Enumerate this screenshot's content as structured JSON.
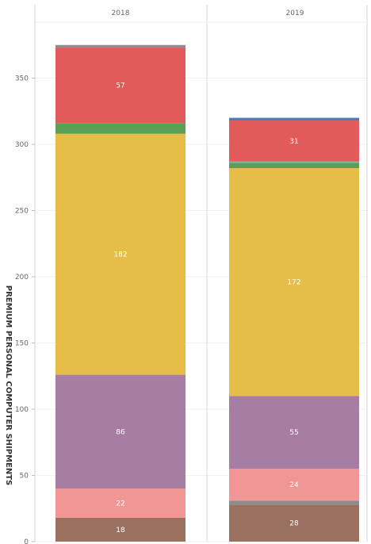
{
  "chart_data": {
    "type": "bar",
    "stacked": true,
    "orientation": "vertical",
    "categories": [
      "2018",
      "2019"
    ],
    "ylabel": "PREMIUM PERSONAL COMPUTER SHIPMENTS",
    "ylim": [
      0,
      375
    ],
    "yticks": [
      0,
      50,
      100,
      150,
      200,
      250,
      300,
      350
    ],
    "grid": true,
    "legend": "none",
    "series": [
      {
        "color": "#9a7060",
        "values": [
          18,
          28
        ],
        "labels": [
          "18",
          "28"
        ]
      },
      {
        "color": "#8d8d8d",
        "values": [
          0,
          3
        ],
        "labels": [
          "",
          ""
        ]
      },
      {
        "color": "#f29595",
        "values": [
          22,
          24
        ],
        "labels": [
          "22",
          "24"
        ]
      },
      {
        "color": "#a87da3",
        "values": [
          86,
          55
        ],
        "labels": [
          "86",
          "55"
        ]
      },
      {
        "color": "#e5bd48",
        "values": [
          182,
          172
        ],
        "labels": [
          "182",
          "172"
        ]
      },
      {
        "color": "#59a055",
        "values": [
          8,
          4
        ],
        "labels": [
          "",
          ""
        ]
      },
      {
        "color": "#7fb2ad",
        "values": [
          0,
          1
        ],
        "labels": [
          "",
          ""
        ]
      },
      {
        "color": "#e25a5a",
        "values": [
          57,
          31
        ],
        "labels": [
          "57",
          "31"
        ]
      },
      {
        "color": "#8d8d8d",
        "values": [
          2,
          0
        ],
        "labels": [
          "",
          ""
        ]
      },
      {
        "color": "#4f79b4",
        "values": [
          0,
          2
        ],
        "labels": [
          "",
          ""
        ]
      }
    ]
  }
}
